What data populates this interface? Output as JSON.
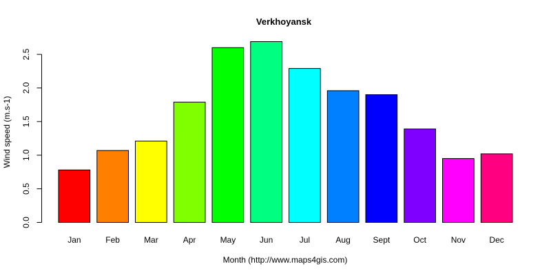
{
  "chart_data": {
    "type": "bar",
    "title": "Verkhoyansk",
    "xlabel": "Month (http://www.maps4gis.com)",
    "ylabel": "Wind speed (m.s-1)",
    "categories": [
      "Jan",
      "Feb",
      "Mar",
      "Apr",
      "May",
      "Jun",
      "Jul",
      "Aug",
      "Sept",
      "Oct",
      "Nov",
      "Dec"
    ],
    "values": [
      0.78,
      1.07,
      1.21,
      1.79,
      2.6,
      2.69,
      2.29,
      1.96,
      1.9,
      1.39,
      0.95,
      1.02
    ],
    "colors": [
      "#ff0000",
      "#ff8000",
      "#ffff00",
      "#80ff00",
      "#00ff00",
      "#00ff80",
      "#00ffff",
      "#0080ff",
      "#0000ff",
      "#8000ff",
      "#ff00ff",
      "#ff0080"
    ],
    "ylim": [
      0,
      2.7
    ],
    "yticks": [
      0.0,
      0.5,
      1.0,
      1.5,
      2.0,
      2.5
    ],
    "ytick_labels": [
      "0.0",
      "0.5",
      "1.0",
      "1.5",
      "2.0",
      "2.5"
    ],
    "grid": false,
    "legend": "none"
  }
}
